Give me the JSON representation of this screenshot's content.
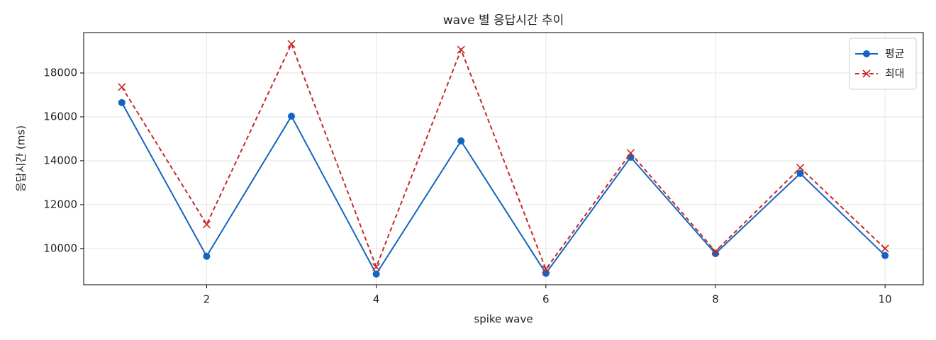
{
  "chart_data": {
    "type": "line",
    "title": "wave 별 응답시간 추이",
    "x_label": "spike wave",
    "y_label": "응답시간 (ms)",
    "x": [
      1,
      2,
      3,
      4,
      5,
      6,
      7,
      8,
      9,
      10
    ],
    "series": [
      {
        "name": "평균",
        "color": "#1565c0",
        "marker": "o",
        "linestyle": "solid",
        "values": [
          16650,
          9650,
          16030,
          8840,
          14900,
          8870,
          14160,
          9770,
          13420,
          9680
        ]
      },
      {
        "name": "최대",
        "color": "#c62828",
        "marker": "x",
        "linestyle": "dashed",
        "values": [
          17360,
          11100,
          19320,
          9160,
          19060,
          9060,
          14350,
          9870,
          13680,
          10000
        ]
      }
    ],
    "xlim": [
      0.55,
      10.45
    ],
    "xticks": [
      2,
      4,
      6,
      8,
      10
    ],
    "ylim": [
      8350,
      19840
    ],
    "yticks": [
      10000,
      12000,
      14000,
      16000,
      18000
    ],
    "grid": true,
    "legend": "upper right"
  }
}
